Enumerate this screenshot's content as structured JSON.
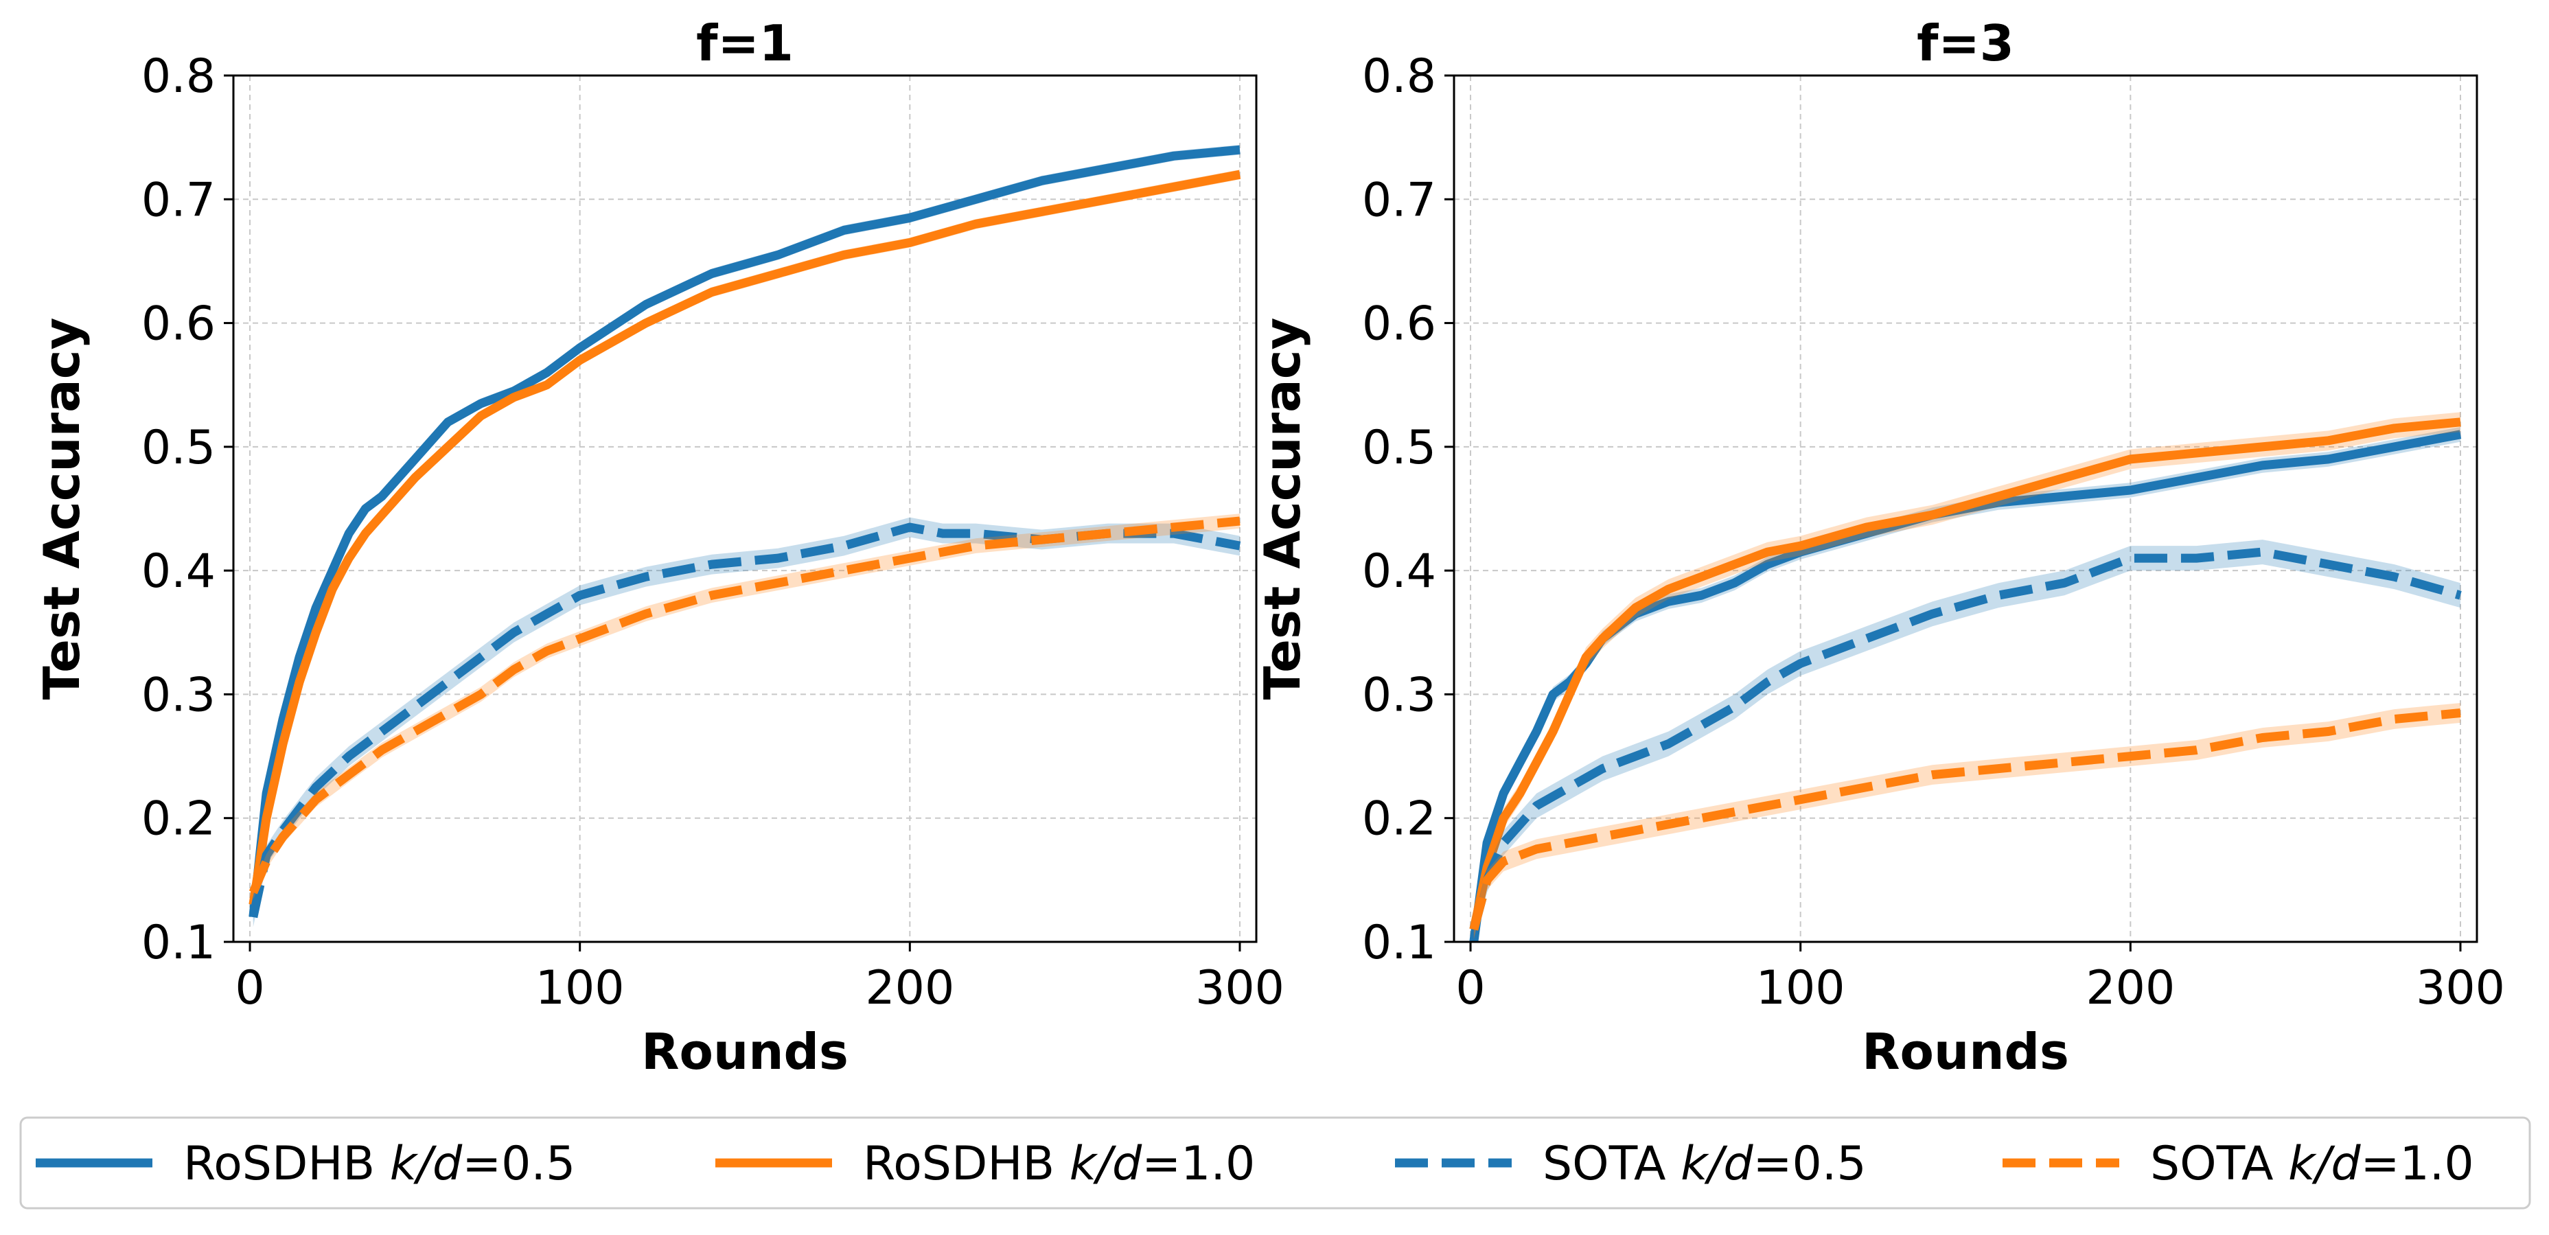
{
  "colors": {
    "blue": "#1f77b4",
    "orange": "#ff7f0e",
    "grid": "#c8c8c8"
  },
  "legend": {
    "placement": "bottom-center",
    "entries": [
      {
        "prefix": "RoSDHB ",
        "italic": "k/d",
        "suffix": "=0.5",
        "color": "#1f77b4",
        "dashed": false
      },
      {
        "prefix": "RoSDHB ",
        "italic": "k/d",
        "suffix": "=1.0",
        "color": "#ff7f0e",
        "dashed": false
      },
      {
        "prefix": "SOTA ",
        "italic": "k/d",
        "suffix": "=0.5",
        "color": "#1f77b4",
        "dashed": true
      },
      {
        "prefix": "SOTA ",
        "italic": "k/d",
        "suffix": "=1.0",
        "color": "#ff7f0e",
        "dashed": true
      }
    ]
  },
  "chart_data": [
    {
      "type": "line",
      "title": "f=1",
      "xlabel": "Rounds",
      "ylabel": "Test Accuracy",
      "xlim": [
        -5,
        305
      ],
      "ylim": [
        0.1,
        0.8
      ],
      "xticks": [
        "0",
        "100",
        "200",
        "300"
      ],
      "yticks": [
        "0.1",
        "0.2",
        "0.3",
        "0.4",
        "0.5",
        "0.6",
        "0.7",
        "0.8"
      ],
      "grid": true,
      "series": [
        {
          "name": "RoSDHB k/d=0.5",
          "color": "#1f77b4",
          "dashed": false,
          "band": 0.004,
          "x": [
            1,
            5,
            10,
            15,
            20,
            25,
            30,
            35,
            40,
            50,
            60,
            70,
            80,
            90,
            100,
            120,
            140,
            160,
            180,
            200,
            220,
            240,
            260,
            280,
            300
          ],
          "y": [
            0.12,
            0.22,
            0.28,
            0.33,
            0.37,
            0.4,
            0.43,
            0.45,
            0.46,
            0.49,
            0.52,
            0.535,
            0.545,
            0.56,
            0.58,
            0.615,
            0.64,
            0.655,
            0.675,
            0.685,
            0.7,
            0.715,
            0.725,
            0.735,
            0.74
          ]
        },
        {
          "name": "RoSDHB k/d=1.0",
          "color": "#ff7f0e",
          "dashed": false,
          "band": 0.004,
          "x": [
            1,
            5,
            10,
            15,
            20,
            25,
            30,
            35,
            40,
            50,
            60,
            70,
            80,
            90,
            100,
            120,
            140,
            160,
            180,
            200,
            220,
            240,
            260,
            280,
            300
          ],
          "y": [
            0.13,
            0.2,
            0.26,
            0.31,
            0.35,
            0.385,
            0.41,
            0.43,
            0.445,
            0.475,
            0.5,
            0.525,
            0.54,
            0.55,
            0.57,
            0.6,
            0.625,
            0.64,
            0.655,
            0.665,
            0.68,
            0.69,
            0.7,
            0.71,
            0.72
          ]
        },
        {
          "name": "SOTA k/d=0.5",
          "color": "#1f77b4",
          "dashed": true,
          "band": 0.008,
          "x": [
            1,
            5,
            10,
            20,
            30,
            40,
            50,
            60,
            70,
            80,
            90,
            100,
            120,
            140,
            160,
            180,
            200,
            210,
            220,
            240,
            260,
            280,
            300
          ],
          "y": [
            0.12,
            0.17,
            0.19,
            0.225,
            0.25,
            0.27,
            0.29,
            0.31,
            0.33,
            0.35,
            0.365,
            0.38,
            0.395,
            0.405,
            0.41,
            0.42,
            0.435,
            0.43,
            0.43,
            0.425,
            0.43,
            0.43,
            0.42
          ]
        },
        {
          "name": "SOTA k/d=1.0",
          "color": "#ff7f0e",
          "dashed": true,
          "band": 0.006,
          "x": [
            1,
            5,
            10,
            20,
            30,
            40,
            50,
            60,
            70,
            80,
            90,
            100,
            120,
            140,
            160,
            180,
            200,
            220,
            240,
            260,
            280,
            300
          ],
          "y": [
            0.14,
            0.165,
            0.185,
            0.215,
            0.235,
            0.255,
            0.27,
            0.285,
            0.3,
            0.32,
            0.335,
            0.345,
            0.365,
            0.38,
            0.39,
            0.4,
            0.41,
            0.42,
            0.425,
            0.43,
            0.435,
            0.44
          ]
        }
      ]
    },
    {
      "type": "line",
      "title": "f=3",
      "xlabel": "Rounds",
      "ylabel": "Test Accuracy",
      "xlim": [
        -5,
        305
      ],
      "ylim": [
        0.1,
        0.8
      ],
      "xticks": [
        "0",
        "100",
        "200",
        "300"
      ],
      "yticks": [
        "0.1",
        "0.2",
        "0.3",
        "0.4",
        "0.5",
        "0.6",
        "0.7",
        "0.8"
      ],
      "grid": true,
      "series": [
        {
          "name": "RoSDHB k/d=0.5",
          "color": "#1f77b4",
          "dashed": false,
          "band": 0.006,
          "x": [
            1,
            5,
            10,
            15,
            20,
            25,
            30,
            35,
            40,
            50,
            60,
            70,
            80,
            90,
            100,
            120,
            140,
            160,
            180,
            200,
            220,
            240,
            260,
            280,
            300
          ],
          "y": [
            0.1,
            0.18,
            0.22,
            0.245,
            0.27,
            0.3,
            0.31,
            0.325,
            0.345,
            0.365,
            0.375,
            0.38,
            0.39,
            0.405,
            0.415,
            0.43,
            0.445,
            0.455,
            0.46,
            0.465,
            0.475,
            0.485,
            0.49,
            0.5,
            0.51
          ]
        },
        {
          "name": "RoSDHB k/d=1.0",
          "color": "#ff7f0e",
          "dashed": false,
          "band": 0.008,
          "x": [
            1,
            5,
            10,
            15,
            20,
            25,
            30,
            35,
            40,
            50,
            60,
            70,
            80,
            90,
            100,
            120,
            140,
            160,
            180,
            200,
            220,
            240,
            260,
            280,
            300
          ],
          "y": [
            0.11,
            0.16,
            0.2,
            0.22,
            0.245,
            0.27,
            0.3,
            0.33,
            0.345,
            0.37,
            0.385,
            0.395,
            0.405,
            0.415,
            0.42,
            0.435,
            0.445,
            0.46,
            0.475,
            0.49,
            0.495,
            0.5,
            0.505,
            0.515,
            0.52
          ]
        },
        {
          "name": "SOTA k/d=0.5",
          "color": "#1f77b4",
          "dashed": true,
          "band": 0.01,
          "x": [
            1,
            5,
            10,
            20,
            30,
            40,
            50,
            60,
            70,
            80,
            90,
            100,
            120,
            140,
            160,
            180,
            200,
            220,
            240,
            260,
            280,
            300
          ],
          "y": [
            0.11,
            0.15,
            0.18,
            0.21,
            0.225,
            0.24,
            0.25,
            0.26,
            0.275,
            0.29,
            0.31,
            0.325,
            0.345,
            0.365,
            0.38,
            0.39,
            0.41,
            0.41,
            0.415,
            0.405,
            0.395,
            0.38
          ]
        },
        {
          "name": "SOTA k/d=1.0",
          "color": "#ff7f0e",
          "dashed": true,
          "band": 0.008,
          "x": [
            1,
            5,
            10,
            20,
            30,
            40,
            50,
            60,
            70,
            80,
            90,
            100,
            120,
            140,
            160,
            180,
            200,
            220,
            240,
            260,
            280,
            300
          ],
          "y": [
            0.11,
            0.15,
            0.165,
            0.175,
            0.18,
            0.185,
            0.19,
            0.195,
            0.2,
            0.205,
            0.21,
            0.215,
            0.225,
            0.235,
            0.24,
            0.245,
            0.25,
            0.255,
            0.265,
            0.27,
            0.28,
            0.285
          ]
        }
      ]
    }
  ]
}
